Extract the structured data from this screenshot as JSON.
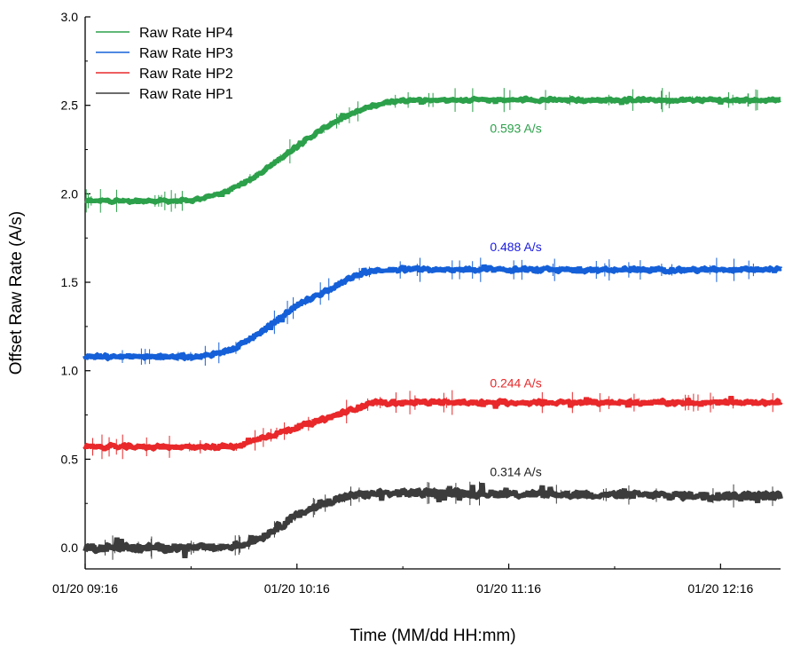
{
  "chart_data": {
    "type": "line",
    "xlabel": "Time (MM/dd HH:mm)",
    "ylabel": "Offset Raw Rate (A/s)",
    "x_unit": "minutes",
    "x_ticks": [
      {
        "value": 0,
        "label": "01/20 09:16"
      },
      {
        "value": 60,
        "label": "01/20 10:16"
      },
      {
        "value": 120,
        "label": "01/20 11:16"
      },
      {
        "value": 180,
        "label": "01/20 12:16"
      }
    ],
    "xlim": [
      0,
      197
    ],
    "ylim": [
      -0.12,
      3.0
    ],
    "y_ticks": [
      {
        "value": 0.0,
        "label": "0.0"
      },
      {
        "value": 0.5,
        "label": "0.5"
      },
      {
        "value": 1.0,
        "label": "1.0"
      },
      {
        "value": 1.5,
        "label": "1.5"
      },
      {
        "value": 2.0,
        "label": "2.0"
      },
      {
        "value": 2.5,
        "label": "2.5"
      },
      {
        "value": 3.0,
        "label": "3.0"
      }
    ],
    "grid": false,
    "legend_position": "top-left",
    "series": [
      {
        "name": "Raw Rate HP4",
        "color": "#2ca04a",
        "x": [
          0,
          30,
          40,
          50,
          60,
          70,
          80,
          84,
          90,
          197
        ],
        "y": [
          1.96,
          1.96,
          2.01,
          2.12,
          2.27,
          2.4,
          2.49,
          2.51,
          2.53,
          2.53
        ]
      },
      {
        "name": "Raw Rate HP3",
        "color": "#1560d8",
        "x": [
          0,
          33,
          42,
          50,
          60,
          70,
          78,
          84,
          90,
          197
        ],
        "y": [
          1.08,
          1.08,
          1.12,
          1.22,
          1.37,
          1.47,
          1.55,
          1.57,
          1.57,
          1.57
        ]
      },
      {
        "name": "Raw Rate HP2",
        "color": "#e8282a",
        "x": [
          0,
          43,
          50,
          60,
          70,
          77,
          82,
          90,
          197
        ],
        "y": [
          0.57,
          0.57,
          0.62,
          0.68,
          0.74,
          0.79,
          0.82,
          0.82,
          0.82
        ]
      },
      {
        "name": "Raw Rate HP1",
        "color": "#3c3c3c",
        "x": [
          0,
          38,
          45,
          50,
          55,
          60,
          65,
          72,
          78,
          90,
          197
        ],
        "y": [
          0.0,
          0.0,
          0.02,
          0.06,
          0.12,
          0.18,
          0.23,
          0.28,
          0.3,
          0.31,
          0.29
        ]
      }
    ],
    "annotations": [
      {
        "text": "0.593 A/s",
        "x": 122,
        "y": 2.37,
        "color": "#2ca04a"
      },
      {
        "text": "0.488 A/s",
        "x": 122,
        "y": 1.7,
        "color": "#1a1ae0"
      },
      {
        "text": "0.244 A/s",
        "x": 122,
        "y": 0.93,
        "color": "#e8282a"
      },
      {
        "text": "0.314 A/s",
        "x": 122,
        "y": 0.43,
        "color": "#222222"
      }
    ]
  }
}
